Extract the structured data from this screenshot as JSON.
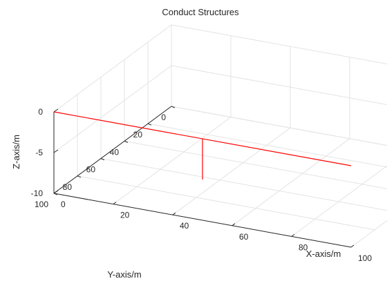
{
  "chart_data": {
    "type": "line",
    "title": "Conduct Structures",
    "xlabel": "X-axis/m",
    "ylabel": "Y-axis/m",
    "zlabel": "Z-axis/m",
    "xlim": [
      0,
      100
    ],
    "ylim": [
      0,
      100
    ],
    "zlim": [
      -10,
      0
    ],
    "x_ticks": [
      "0",
      "20",
      "40",
      "60",
      "80",
      "100"
    ],
    "y_ticks": [
      "0",
      "20",
      "40",
      "60",
      "80",
      "100"
    ],
    "z_ticks": [
      "-10",
      "-5",
      "0"
    ],
    "grid": true,
    "series": [
      {
        "color": "#ff0000",
        "points": [
          [
            0,
            100,
            0
          ],
          [
            100,
            100,
            0
          ]
        ]
      },
      {
        "color": "#ff0000",
        "points": [
          [
            50,
            100,
            0
          ],
          [
            50,
            100,
            -5
          ]
        ]
      }
    ]
  }
}
